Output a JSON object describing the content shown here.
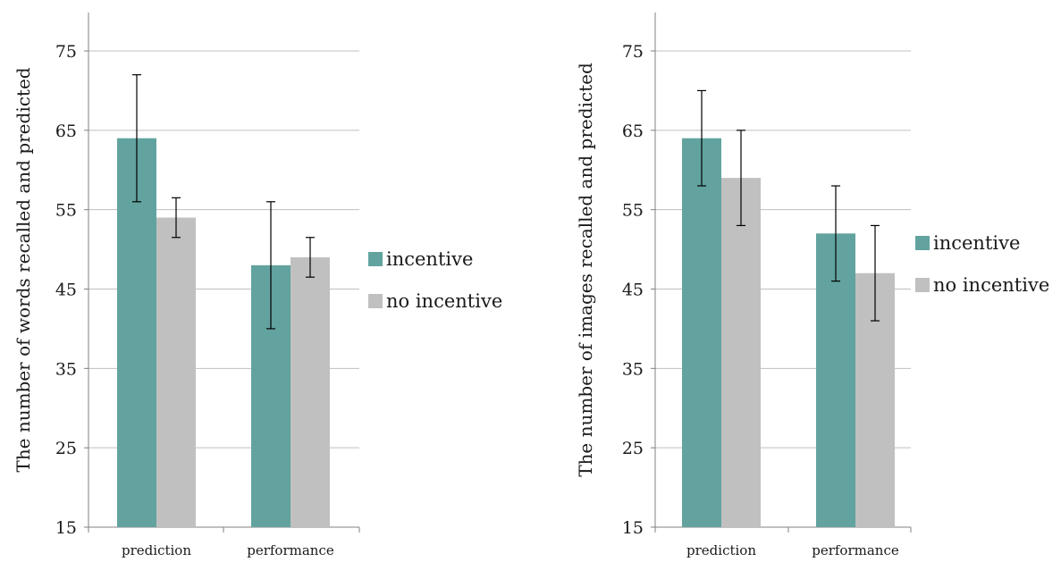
{
  "chart_data": [
    {
      "type": "bar",
      "title": "",
      "xlabel": "",
      "ylabel": "The number of words recalled and predicted",
      "ylim": [
        15,
        75
      ],
      "yticks": [
        15,
        25,
        35,
        45,
        55,
        65,
        75
      ],
      "categories": [
        "prediction",
        "performance"
      ],
      "series": [
        {
          "name": "incentive",
          "values": [
            64,
            48
          ],
          "errors": [
            8,
            8
          ]
        },
        {
          "name": "no incentive",
          "values": [
            54,
            49
          ],
          "errors": [
            2.5,
            2.5
          ]
        }
      ],
      "grid": true,
      "legend": "right"
    },
    {
      "type": "bar",
      "title": "",
      "xlabel": "",
      "ylabel": "The number of images recalled and predicted",
      "ylim": [
        15,
        75
      ],
      "yticks": [
        15,
        25,
        35,
        45,
        55,
        65,
        75
      ],
      "categories": [
        "prediction",
        "performance"
      ],
      "series": [
        {
          "name": "incentive",
          "values": [
            64,
            52
          ],
          "errors": [
            6,
            6
          ]
        },
        {
          "name": "no incentive",
          "values": [
            59,
            47
          ],
          "errors": [
            6,
            6
          ]
        }
      ],
      "grid": true,
      "legend": "right"
    }
  ],
  "colors": {
    "incentive": "#62a39f",
    "no_incentive": "#c0c0c0",
    "grid": "#bfbfbf",
    "axis": "#808080",
    "error_bar": "#000000"
  }
}
